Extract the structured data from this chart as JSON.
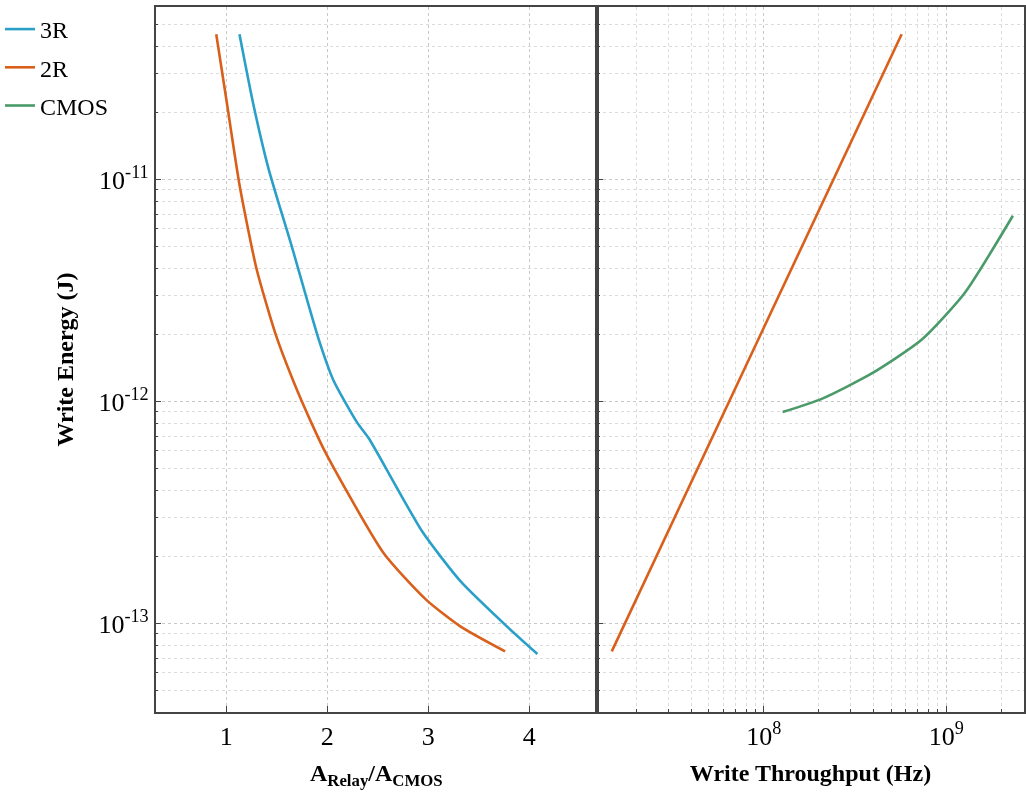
{
  "chart_data": [
    {
      "type": "line",
      "xlabel": "A$_{Relay}$/A$_{CMOS}$",
      "ylabel": "Write Energy (J)",
      "log": "y",
      "grid": true,
      "legend": "top left",
      "line_style": "solid",
      "marker": "none",
      "xlim": [
        0.3,
        4.67
      ],
      "xticks": [
        1,
        2,
        3,
        4
      ],
      "ylim": [
        4e-14,
        6e-11
      ],
      "yticks": [
        {
          "value": 1e-13,
          "label": "10$^{-13}$"
        },
        {
          "value": 1e-12,
          "label": "10$^{-12}$"
        },
        {
          "value": 1e-11,
          "label": "10$^{-11}$"
        }
      ],
      "series": [
        {
          "name": "3R",
          "color": "#2aa0c8",
          "x": [
            1.13,
            1.265,
            1.418,
            1.647,
            1.913,
            2.06,
            2.294,
            2.41,
            2.94,
            3.32,
            3.78,
            4.08
          ],
          "values": [
            4.52e-11,
            2.21e-11,
            1.12e-11,
            5.02e-12,
            1.92e-12,
            1.25e-12,
            8.07e-13,
            6.84e-13,
            2.6e-13,
            1.55e-13,
            9.7e-14,
            7.3e-14
          ]
        },
        {
          "name": "2R",
          "color": "#d8601a",
          "x": [
            0.9,
            1.0,
            1.13,
            1.3,
            1.49,
            1.66,
            1.84,
            1.99,
            2.56,
            2.98,
            3.32,
            3.76
          ],
          "values": [
            4.52e-11,
            2.3e-11,
            9.5e-12,
            3.95e-12,
            2e-12,
            1.25e-12,
            8.07e-13,
            5.8e-13,
            2.07e-13,
            1.28e-13,
            9.7e-14,
            7.5e-14
          ]
        }
      ]
    },
    {
      "type": "line",
      "xlabel": "Write Throughput (Hz)",
      "log": "xy",
      "grid": true,
      "tick_labels": "x",
      "line_style": "solid",
      "marker": "none",
      "xlim": [
        12200000.0,
        2670000000.0
      ],
      "xticks": [
        {
          "value": 100000000.0,
          "label": "10$^{8}$"
        },
        {
          "value": 1000000000.0,
          "label": "10$^{9}$"
        }
      ],
      "ylim": [
        4e-14,
        6e-11
      ],
      "yticks": [
        {
          "value": 1e-13,
          "label": null
        },
        {
          "value": 1e-12,
          "label": null
        },
        {
          "value": 1e-11,
          "label": null
        }
      ],
      "series": [
        {
          "name": "2R",
          "color": "#d8601a",
          "x": [
            14700000.0,
            570000000.0
          ],
          "values": [
            7.5e-14,
            4.52e-11
          ]
        },
        {
          "name": "CMOS",
          "color": "#4a9a6a",
          "x": [
            127000000.0,
            208000000.0,
            391000000.0,
            733000000.0,
            1260000000.0,
            2320000000.0
          ],
          "values": [
            8.98e-13,
            1.03e-12,
            1.34e-12,
            1.9e-12,
            3.08e-12,
            6.88e-12
          ]
        }
      ]
    }
  ]
}
